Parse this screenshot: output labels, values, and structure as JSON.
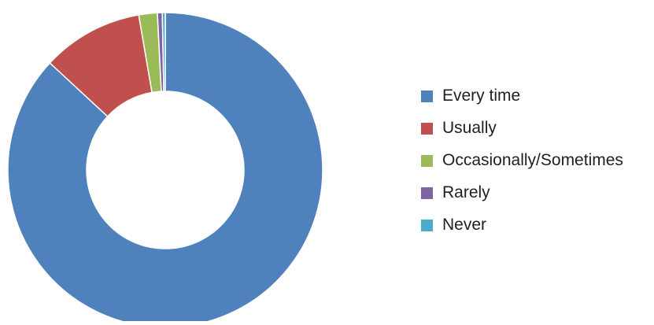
{
  "chart_data": {
    "type": "pie",
    "variant": "donut",
    "title": "",
    "categories": [
      "Every time",
      "Usually",
      "Occasionally/Sometimes",
      "Rarely",
      "Never"
    ],
    "values": [
      86.9,
      10.4,
      1.9,
      0.5,
      0.3
    ],
    "colors": [
      "#4F81BD",
      "#C0504D",
      "#9BBB59",
      "#8064A2",
      "#4BACC6"
    ],
    "legend_position": "right",
    "data_labels": false
  }
}
